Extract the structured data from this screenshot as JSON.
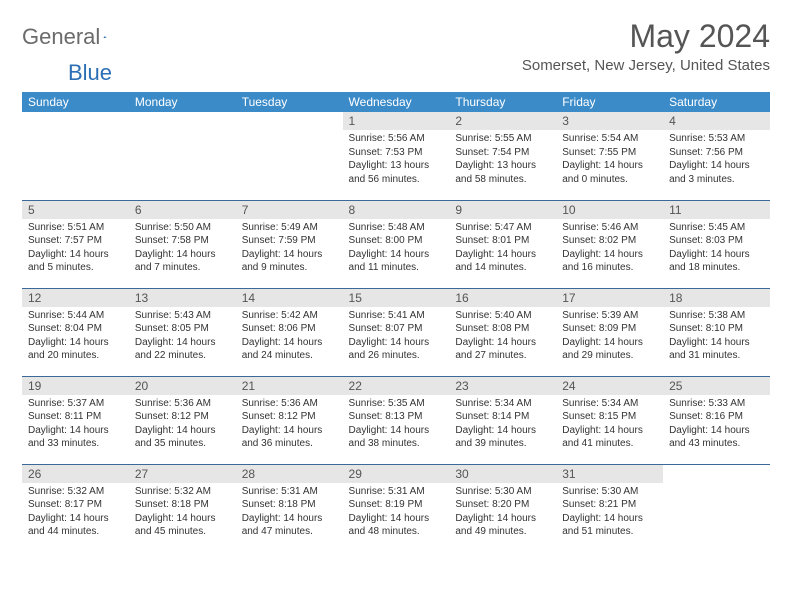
{
  "logo": {
    "text1": "General",
    "text2": "Blue"
  },
  "title": "May 2024",
  "location": "Somerset, New Jersey, United States",
  "colors": {
    "header_bg": "#3b8bc9",
    "header_text": "#ffffff",
    "daynum_bg": "#e6e6e6",
    "row_border": "#3b6a9a",
    "logo_gray": "#6b6b6b",
    "logo_blue": "#2d6fb5",
    "title_color": "#555555"
  },
  "weekdays": [
    "Sunday",
    "Monday",
    "Tuesday",
    "Wednesday",
    "Thursday",
    "Friday",
    "Saturday"
  ],
  "weeks": [
    [
      null,
      null,
      null,
      {
        "n": "1",
        "sr": "5:56 AM",
        "ss": "7:53 PM",
        "dl": "13 hours and 56 minutes."
      },
      {
        "n": "2",
        "sr": "5:55 AM",
        "ss": "7:54 PM",
        "dl": "13 hours and 58 minutes."
      },
      {
        "n": "3",
        "sr": "5:54 AM",
        "ss": "7:55 PM",
        "dl": "14 hours and 0 minutes."
      },
      {
        "n": "4",
        "sr": "5:53 AM",
        "ss": "7:56 PM",
        "dl": "14 hours and 3 minutes."
      }
    ],
    [
      {
        "n": "5",
        "sr": "5:51 AM",
        "ss": "7:57 PM",
        "dl": "14 hours and 5 minutes."
      },
      {
        "n": "6",
        "sr": "5:50 AM",
        "ss": "7:58 PM",
        "dl": "14 hours and 7 minutes."
      },
      {
        "n": "7",
        "sr": "5:49 AM",
        "ss": "7:59 PM",
        "dl": "14 hours and 9 minutes."
      },
      {
        "n": "8",
        "sr": "5:48 AM",
        "ss": "8:00 PM",
        "dl": "14 hours and 11 minutes."
      },
      {
        "n": "9",
        "sr": "5:47 AM",
        "ss": "8:01 PM",
        "dl": "14 hours and 14 minutes."
      },
      {
        "n": "10",
        "sr": "5:46 AM",
        "ss": "8:02 PM",
        "dl": "14 hours and 16 minutes."
      },
      {
        "n": "11",
        "sr": "5:45 AM",
        "ss": "8:03 PM",
        "dl": "14 hours and 18 minutes."
      }
    ],
    [
      {
        "n": "12",
        "sr": "5:44 AM",
        "ss": "8:04 PM",
        "dl": "14 hours and 20 minutes."
      },
      {
        "n": "13",
        "sr": "5:43 AM",
        "ss": "8:05 PM",
        "dl": "14 hours and 22 minutes."
      },
      {
        "n": "14",
        "sr": "5:42 AM",
        "ss": "8:06 PM",
        "dl": "14 hours and 24 minutes."
      },
      {
        "n": "15",
        "sr": "5:41 AM",
        "ss": "8:07 PM",
        "dl": "14 hours and 26 minutes."
      },
      {
        "n": "16",
        "sr": "5:40 AM",
        "ss": "8:08 PM",
        "dl": "14 hours and 27 minutes."
      },
      {
        "n": "17",
        "sr": "5:39 AM",
        "ss": "8:09 PM",
        "dl": "14 hours and 29 minutes."
      },
      {
        "n": "18",
        "sr": "5:38 AM",
        "ss": "8:10 PM",
        "dl": "14 hours and 31 minutes."
      }
    ],
    [
      {
        "n": "19",
        "sr": "5:37 AM",
        "ss": "8:11 PM",
        "dl": "14 hours and 33 minutes."
      },
      {
        "n": "20",
        "sr": "5:36 AM",
        "ss": "8:12 PM",
        "dl": "14 hours and 35 minutes."
      },
      {
        "n": "21",
        "sr": "5:36 AM",
        "ss": "8:12 PM",
        "dl": "14 hours and 36 minutes."
      },
      {
        "n": "22",
        "sr": "5:35 AM",
        "ss": "8:13 PM",
        "dl": "14 hours and 38 minutes."
      },
      {
        "n": "23",
        "sr": "5:34 AM",
        "ss": "8:14 PM",
        "dl": "14 hours and 39 minutes."
      },
      {
        "n": "24",
        "sr": "5:34 AM",
        "ss": "8:15 PM",
        "dl": "14 hours and 41 minutes."
      },
      {
        "n": "25",
        "sr": "5:33 AM",
        "ss": "8:16 PM",
        "dl": "14 hours and 43 minutes."
      }
    ],
    [
      {
        "n": "26",
        "sr": "5:32 AM",
        "ss": "8:17 PM",
        "dl": "14 hours and 44 minutes."
      },
      {
        "n": "27",
        "sr": "5:32 AM",
        "ss": "8:18 PM",
        "dl": "14 hours and 45 minutes."
      },
      {
        "n": "28",
        "sr": "5:31 AM",
        "ss": "8:18 PM",
        "dl": "14 hours and 47 minutes."
      },
      {
        "n": "29",
        "sr": "5:31 AM",
        "ss": "8:19 PM",
        "dl": "14 hours and 48 minutes."
      },
      {
        "n": "30",
        "sr": "5:30 AM",
        "ss": "8:20 PM",
        "dl": "14 hours and 49 minutes."
      },
      {
        "n": "31",
        "sr": "5:30 AM",
        "ss": "8:21 PM",
        "dl": "14 hours and 51 minutes."
      },
      null
    ]
  ]
}
